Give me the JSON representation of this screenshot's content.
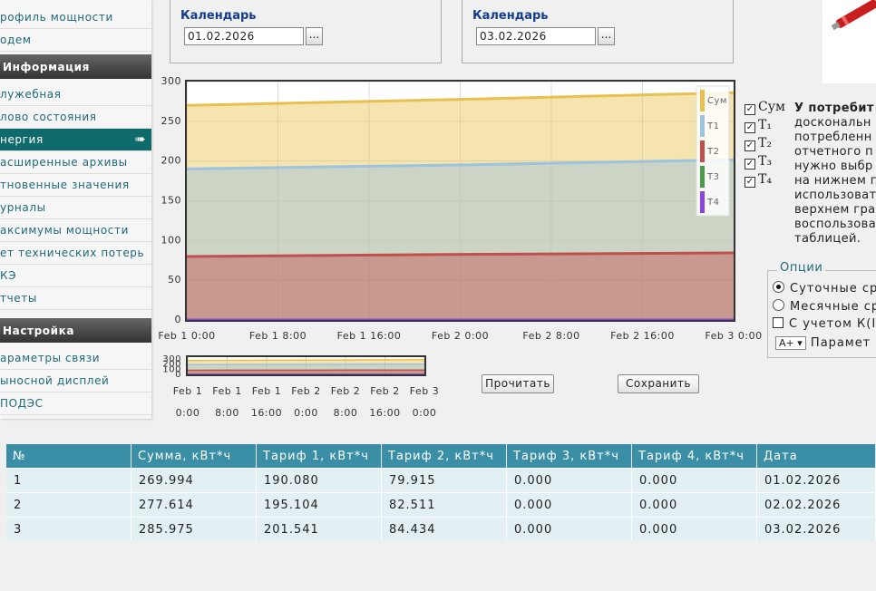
{
  "sidebar": {
    "top": [
      "рофиль мощности",
      "одем"
    ],
    "sections": [
      {
        "title": "Информация",
        "items": [
          "лужебная",
          "лово состояния",
          "нергия",
          "асширенные архивы",
          "тновенные значения",
          "урналы",
          "аксимумы мощности",
          "ет технических потерь",
          "КЭ",
          "тчеты"
        ]
      },
      {
        "title": "Настройка",
        "items": [
          "араметры связи",
          "ыносной дисплей",
          "ПОДЭС"
        ]
      }
    ]
  },
  "calendars": [
    {
      "label": "Календарь",
      "value": "01.02.2026",
      "button": "..."
    },
    {
      "label": "Календарь",
      "value": "03.02.2026",
      "button": "..."
    }
  ],
  "chart_data": {
    "type": "area",
    "grid": true,
    "x": [
      0,
      24,
      48
    ],
    "xlim": [
      0,
      48
    ],
    "xticks": [
      {
        "value": 0,
        "label": "Feb 1 0:00"
      },
      {
        "value": 8,
        "label": "Feb 1 8:00"
      },
      {
        "value": 16,
        "label": "Feb 1 16:00"
      },
      {
        "value": 24,
        "label": "Feb 2 0:00"
      },
      {
        "value": 32,
        "label": "Feb 2 8:00"
      },
      {
        "value": 40,
        "label": "Feb 2 16:00"
      },
      {
        "value": 48,
        "label": "Feb 3 0:00"
      }
    ],
    "ylim": [
      0,
      300
    ],
    "yticks": [
      0,
      50,
      100,
      150,
      200,
      250,
      300
    ],
    "legend": "top-right",
    "series": [
      {
        "name": "Сум",
        "color": "#e8c050",
        "values": [
          269.994,
          277.614,
          285.975
        ]
      },
      {
        "name": "T1",
        "color": "#9cc3e0",
        "values": [
          190.08,
          195.104,
          201.541
        ]
      },
      {
        "name": "T2",
        "color": "#c0504d",
        "values": [
          79.915,
          82.511,
          84.434
        ]
      },
      {
        "name": "T3",
        "color": "#4a9a4a",
        "values": [
          0,
          0,
          0
        ]
      },
      {
        "name": "T4",
        "color": "#8a44e0",
        "values": [
          0,
          0,
          0
        ]
      }
    ]
  },
  "navigator": {
    "yticks": [
      0,
      100,
      200,
      300
    ],
    "xlabels": [
      [
        "Feb 1",
        "0:00"
      ],
      [
        "Feb 1",
        "8:00"
      ],
      [
        "Feb 1",
        "16:00"
      ],
      [
        "Feb 2",
        "0:00"
      ],
      [
        "Feb 2",
        "8:00"
      ],
      [
        "Feb 2",
        "16:00"
      ],
      [
        "Feb 3",
        "0:00"
      ]
    ]
  },
  "buttons": [
    "Прочитать",
    "Сохранить"
  ],
  "toggles": [
    "Сум",
    "T₁",
    "T₂",
    "T₃",
    "T₄"
  ],
  "info": {
    "heading": "У потребит",
    "lines": [
      "доскональн",
      "потребленн",
      "отчетного п",
      "нужно выбр",
      "на нижнем г",
      "использоват",
      "верхнем гра",
      "воспользова",
      "таблицей."
    ]
  },
  "options": {
    "legend": "Опции",
    "radios": [
      "Суточные ср",
      "Месячные ср"
    ],
    "checkbox": "С учетом К(I",
    "select": "A+",
    "param": "Парамет"
  },
  "table": {
    "header": [
      "№",
      "Сумма, кВт*ч",
      "Тариф 1, кВт*ч",
      "Тариф 2, кВт*ч",
      "Тариф 3, кВт*ч",
      "Тариф 4, кВт*ч",
      "Дата"
    ],
    "rows": [
      [
        "1",
        "269.994",
        "190.080",
        "79.915",
        "0.000",
        "0.000",
        "01.02.2026"
      ],
      [
        "2",
        "277.614",
        "195.104",
        "82.511",
        "0.000",
        "0.000",
        "02.02.2026"
      ],
      [
        "3",
        "285.975",
        "201.541",
        "84.434",
        "0.000",
        "0.000",
        "03.02.2026"
      ]
    ]
  }
}
